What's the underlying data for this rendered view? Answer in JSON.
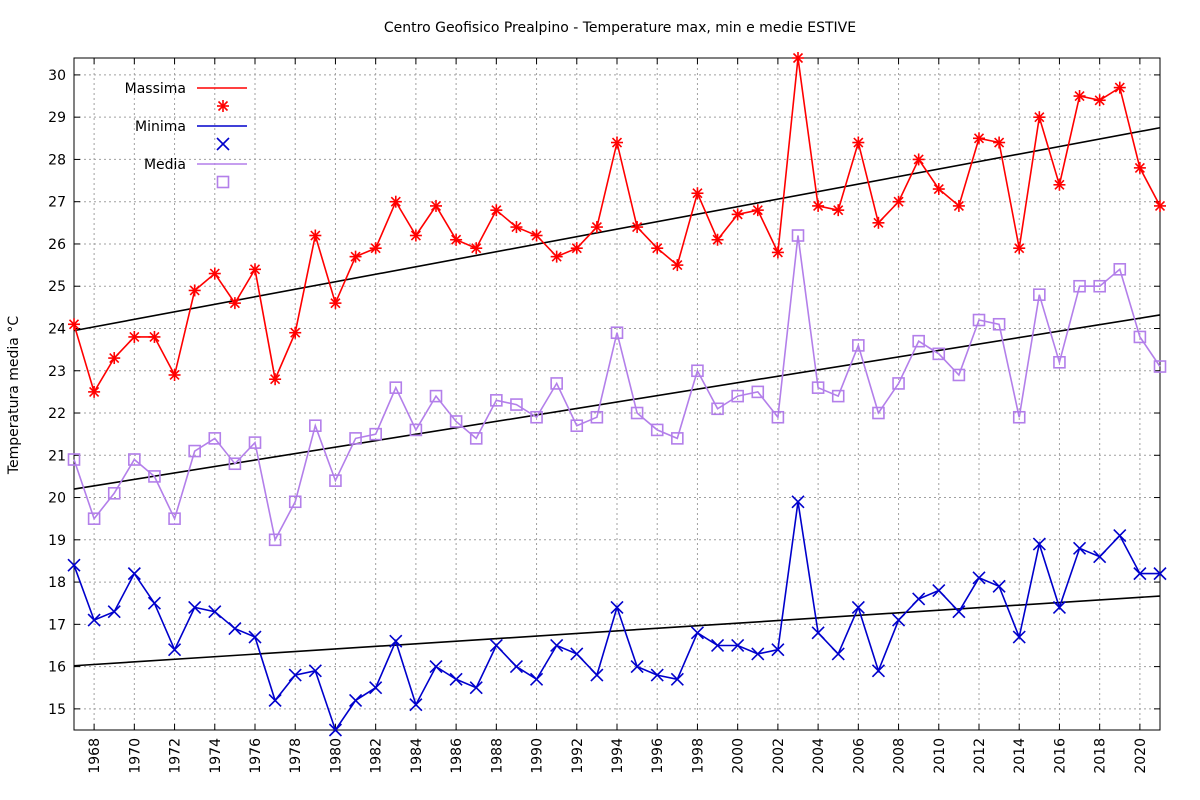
{
  "chart_data": {
    "type": "line",
    "title": "Centro Geofisico Prealpino - Temperature max, min e medie ESTIVE",
    "xlabel": "",
    "ylabel": "Temperatura media °C",
    "xlim": [
      1967,
      2021
    ],
    "ylim": [
      14.5,
      30.4
    ],
    "grid": true,
    "legend_position": "top-left",
    "y_ticks": [
      15,
      16,
      17,
      18,
      19,
      20,
      21,
      22,
      23,
      24,
      25,
      26,
      27,
      28,
      29,
      30
    ],
    "x_ticks": [
      1968,
      1970,
      1972,
      1974,
      1976,
      1978,
      1980,
      1982,
      1984,
      1986,
      1988,
      1990,
      1992,
      1994,
      1996,
      1998,
      2000,
      2002,
      2004,
      2006,
      2008,
      2010,
      2012,
      2014,
      2016,
      2018,
      2020
    ],
    "x": [
      1967,
      1968,
      1969,
      1970,
      1971,
      1972,
      1973,
      1974,
      1975,
      1976,
      1977,
      1978,
      1979,
      1980,
      1981,
      1982,
      1983,
      1984,
      1985,
      1986,
      1987,
      1988,
      1989,
      1990,
      1991,
      1992,
      1993,
      1994,
      1995,
      1996,
      1997,
      1998,
      1999,
      2000,
      2001,
      2002,
      2003,
      2004,
      2005,
      2006,
      2007,
      2008,
      2009,
      2010,
      2011,
      2012,
      2013,
      2014,
      2015,
      2016,
      2017,
      2018,
      2019,
      2020,
      2021
    ],
    "series": [
      {
        "name": "Massima",
        "color": "#ff0000",
        "marker": "asterisk",
        "values": [
          24.1,
          22.5,
          23.3,
          23.8,
          23.8,
          22.9,
          24.9,
          25.3,
          24.6,
          25.4,
          22.8,
          23.9,
          26.2,
          24.6,
          25.7,
          25.9,
          27.0,
          26.2,
          26.9,
          26.1,
          25.9,
          26.8,
          26.4,
          26.2,
          25.7,
          25.9,
          26.4,
          28.4,
          26.4,
          25.9,
          25.5,
          27.2,
          26.1,
          26.7,
          26.8,
          25.8,
          30.4,
          26.9,
          26.8,
          28.4,
          26.5,
          27.0,
          28.0,
          27.3,
          26.9,
          28.5,
          28.4,
          25.9,
          29.0,
          27.4,
          29.5,
          29.4,
          29.7,
          27.8,
          26.9
        ],
        "trend": [
          23.95,
          28.75
        ]
      },
      {
        "name": "Minima",
        "color": "#0000cc",
        "marker": "cross",
        "values": [
          18.4,
          17.1,
          17.3,
          18.2,
          17.5,
          16.4,
          17.4,
          17.3,
          16.9,
          16.7,
          15.2,
          15.8,
          15.9,
          14.5,
          15.2,
          15.5,
          16.6,
          15.1,
          16.0,
          15.7,
          15.5,
          16.5,
          16.0,
          15.7,
          16.5,
          16.3,
          15.8,
          17.4,
          16.0,
          15.8,
          15.7,
          16.8,
          16.5,
          16.5,
          16.3,
          16.4,
          19.9,
          16.8,
          16.3,
          17.4,
          15.9,
          17.1,
          17.6,
          17.8,
          17.3,
          18.1,
          17.9,
          16.7,
          18.9,
          17.4,
          18.8,
          18.6,
          19.1,
          18.2,
          18.2
        ],
        "trend": [
          16.02,
          17.67
        ]
      },
      {
        "name": "Media",
        "color": "#b37fea",
        "marker": "square",
        "values": [
          20.9,
          19.5,
          20.1,
          20.9,
          20.5,
          19.5,
          21.1,
          21.4,
          20.8,
          21.3,
          19.0,
          19.9,
          21.7,
          20.4,
          21.4,
          21.5,
          22.6,
          21.6,
          22.4,
          21.8,
          21.4,
          22.3,
          22.2,
          21.9,
          22.7,
          21.7,
          21.9,
          23.9,
          22.0,
          21.6,
          21.4,
          23.0,
          22.1,
          22.4,
          22.5,
          21.9,
          26.2,
          22.6,
          22.4,
          23.6,
          22.0,
          22.7,
          23.7,
          23.4,
          22.9,
          24.2,
          24.1,
          21.9,
          24.8,
          23.2,
          25.0,
          25.0,
          25.4,
          23.8,
          23.1
        ],
        "trend": [
          20.2,
          24.32
        ]
      }
    ]
  }
}
